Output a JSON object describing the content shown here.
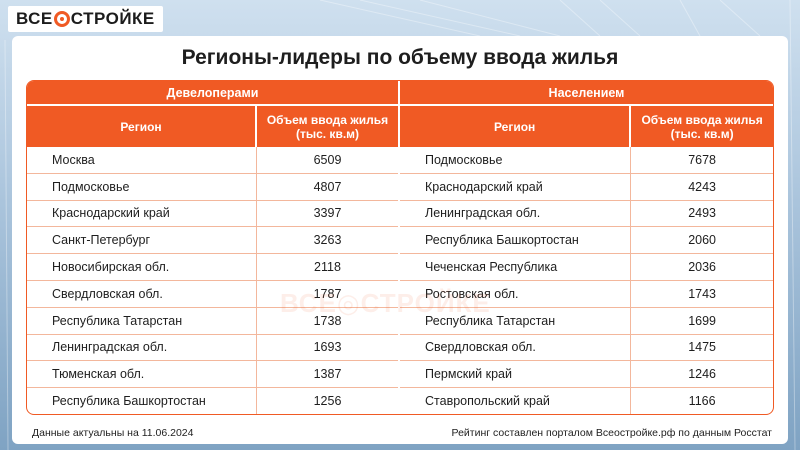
{
  "brand": {
    "logo_left": "ВСЕ",
    "logo_right": "СТРОЙКЕ",
    "accent": "#f05a24"
  },
  "title": "Регионы-лидеры по объему ввода жилья",
  "footer": {
    "left": "Данные актуальны на 11.06.2024",
    "right": "Рейтинг составлен порталом Всеостройке.рф по данным Росстат"
  },
  "chart_data": {
    "type": "table",
    "groups": [
      {
        "name": "Девелоперами",
        "columns": [
          "Регион",
          "Объем ввода жилья (тыс. кв.м)"
        ],
        "rows": [
          {
            "region": "Москва",
            "value": "6509"
          },
          {
            "region": "Подмосковье",
            "value": "4807"
          },
          {
            "region": "Краснодарский край",
            "value": "3397"
          },
          {
            "region": "Санкт-Петербург",
            "value": "3263"
          },
          {
            "region": "Новосибирская обл.",
            "value": "2118"
          },
          {
            "region": "Свердловская обл.",
            "value": "1787"
          },
          {
            "region": "Республика Татарстан",
            "value": "1738"
          },
          {
            "region": "Ленинградская обл.",
            "value": "1693"
          },
          {
            "region": "Тюменская обл.",
            "value": "1387"
          },
          {
            "region": "Республика Башкортостан",
            "value": "1256"
          }
        ]
      },
      {
        "name": "Населением",
        "columns": [
          "Регион",
          "Объем ввода жилья (тыс. кв.м)"
        ],
        "rows": [
          {
            "region": "Подмосковье",
            "value": "7678"
          },
          {
            "region": "Краснодарский край",
            "value": "4243"
          },
          {
            "region": "Ленинградская обл.",
            "value": "2493"
          },
          {
            "region": "Республика Башкортостан",
            "value": "2060"
          },
          {
            "region": "Чеченская Республика",
            "value": "2036"
          },
          {
            "region": "Ростовская обл.",
            "value": "1743"
          },
          {
            "region": "Республика Татарстан",
            "value": "1699"
          },
          {
            "region": "Свердловская обл.",
            "value": "1475"
          },
          {
            "region": "Пермский край",
            "value": "1246"
          },
          {
            "region": "Ставропольский край",
            "value": "1166"
          }
        ]
      }
    ]
  }
}
